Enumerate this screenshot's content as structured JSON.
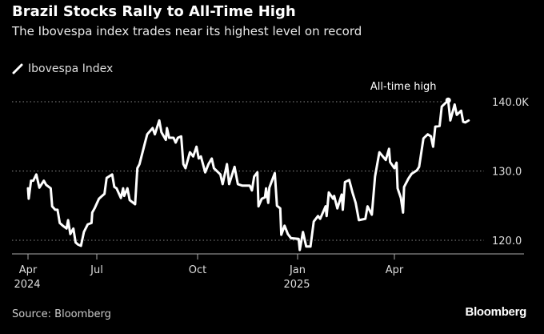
{
  "title": "Brazil Stocks Rally to All-Time High",
  "subtitle": "The Ibovespa index trades near its highest level on record",
  "source": "Source: Bloomberg",
  "logo": "Bloomberg",
  "colors": {
    "background": "#000000",
    "line": "#ffffff",
    "grid": "#888888"
  },
  "chart_data": {
    "type": "line",
    "title": "Brazil Stocks Rally to All-Time High",
    "subtitle": "The Ibovespa index trades near its highest level on record",
    "legend": {
      "entries": [
        "Ibovespa Index"
      ],
      "placement": "top-left"
    },
    "grid": true,
    "y_axis": {
      "side": "right",
      "ylim": [
        117.5,
        141
      ],
      "ticks": [
        120,
        130,
        140
      ],
      "tick_labels": [
        "120.0",
        "130.0",
        "140.0K"
      ]
    },
    "x_axis": {
      "ticks": [
        {
          "date": "2024-04-01",
          "label": "Apr",
          "year": "2024"
        },
        {
          "date": "2024-07-01",
          "label": "Jul",
          "year": ""
        },
        {
          "date": "2024-10-01",
          "label": "Oct",
          "year": ""
        },
        {
          "date": "2025-01-01",
          "label": "Jan",
          "year": "2025"
        },
        {
          "date": "2025-04-01",
          "label": "Apr",
          "year": ""
        }
      ]
    },
    "annotation": {
      "text": "All-time high",
      "date": "2025-05-21",
      "value": 140.2
    },
    "series": [
      {
        "name": "Ibovespa Index",
        "unit": "thousand points",
        "x": [
          "2024-04-01",
          "2024-04-02",
          "2024-04-05",
          "2024-04-08",
          "2024-04-12",
          "2024-04-16",
          "2024-04-22",
          "2024-04-25",
          "2024-05-01",
          "2024-05-03",
          "2024-05-07",
          "2024-05-10",
          "2024-05-13",
          "2024-05-17",
          "2024-05-22",
          "2024-05-24",
          "2024-05-27",
          "2024-05-31",
          "2024-06-03",
          "2024-06-06",
          "2024-06-10",
          "2024-06-14",
          "2024-06-19",
          "2024-06-24",
          "2024-06-25",
          "2024-06-28",
          "2024-07-03",
          "2024-07-08",
          "2024-07-10",
          "2024-07-15",
          "2024-07-17",
          "2024-07-19",
          "2024-07-23",
          "2024-07-25",
          "2024-07-26",
          "2024-07-29",
          "2024-07-31",
          "2024-08-05",
          "2024-08-07",
          "2024-08-09",
          "2024-08-14",
          "2024-08-16",
          "2024-08-21",
          "2024-08-23",
          "2024-08-26",
          "2024-08-27",
          "2024-08-29",
          "2024-09-02",
          "2024-09-03",
          "2024-09-05",
          "2024-09-09",
          "2024-09-11",
          "2024-09-13",
          "2024-09-16",
          "2024-09-18",
          "2024-09-20",
          "2024-09-24",
          "2024-09-27",
          "2024-09-30",
          "2024-10-02",
          "2024-10-04",
          "2024-10-08",
          "2024-10-11",
          "2024-10-14",
          "2024-10-16",
          "2024-10-22",
          "2024-10-24",
          "2024-10-28",
          "2024-10-30",
          "2024-11-04",
          "2024-11-07",
          "2024-11-11",
          "2024-11-18",
          "2024-11-20",
          "2024-11-22",
          "2024-11-25",
          "2024-11-26",
          "2024-11-29",
          "2024-12-02",
          "2024-12-03",
          "2024-12-05",
          "2024-12-06",
          "2024-12-11",
          "2024-12-13",
          "2024-12-16",
          "2024-12-17",
          "2024-12-20",
          "2024-12-23",
          "2024-12-26",
          "2025-01-02",
          "2025-01-03",
          "2025-01-06",
          "2025-01-09",
          "2025-01-13",
          "2025-01-16",
          "2025-01-20",
          "2025-01-22",
          "2025-01-27",
          "2025-01-28",
          "2025-01-30",
          "2025-02-03",
          "2025-02-04",
          "2025-02-07",
          "2025-02-11",
          "2025-02-12",
          "2025-02-14",
          "2025-02-18",
          "2025-02-21",
          "2025-02-24",
          "2025-02-27",
          "2025-03-05",
          "2025-03-07",
          "2025-03-11",
          "2025-03-14",
          "2025-03-18",
          "2025-03-24",
          "2025-03-27",
          "2025-03-28",
          "2025-04-01",
          "2025-04-03",
          "2025-04-04",
          "2025-04-07",
          "2025-04-09",
          "2025-04-10",
          "2025-04-14",
          "2025-04-17",
          "2025-04-22",
          "2025-04-24",
          "2025-04-28",
          "2025-05-02",
          "2025-05-05",
          "2025-05-07",
          "2025-05-09",
          "2025-05-13",
          "2025-05-15",
          "2025-05-19",
          "2025-05-21",
          "2025-05-23",
          "2025-05-27",
          "2025-05-29",
          "2025-06-02",
          "2025-06-04",
          "2025-06-06",
          "2025-06-09"
        ],
        "values": [
          127.5,
          126.0,
          128.6,
          128.6,
          129.5,
          127.6,
          128.6,
          128.0,
          127.5,
          124.9,
          124.4,
          124.4,
          122.5,
          122.1,
          121.7,
          122.9,
          120.9,
          121.7,
          119.7,
          119.4,
          119.2,
          121.2,
          122.3,
          122.5,
          124.0,
          124.6,
          126.0,
          126.7,
          129.0,
          129.5,
          127.7,
          127.5,
          126.1,
          127.5,
          126.4,
          127.5,
          125.8,
          125.2,
          130.4,
          131.0,
          134.1,
          135.3,
          136.2,
          135.3,
          136.8,
          137.3,
          135.6,
          134.5,
          136.2,
          134.8,
          134.8,
          134.1,
          134.8,
          135.0,
          131.0,
          130.4,
          132.7,
          132.1,
          133.5,
          131.8,
          132.1,
          129.8,
          131.0,
          131.8,
          130.4,
          129.5,
          128.1,
          131.0,
          128.1,
          130.6,
          128.1,
          127.9,
          127.9,
          127.2,
          129.2,
          129.8,
          124.9,
          126.0,
          126.2,
          127.5,
          125.4,
          127.6,
          129.7,
          125.0,
          124.6,
          120.8,
          122.1,
          120.9,
          120.3,
          120.2,
          118.6,
          121.2,
          119.1,
          119.1,
          122.7,
          123.5,
          123.1,
          124.9,
          123.5,
          126.9,
          126.0,
          126.4,
          124.6,
          126.6,
          124.4,
          128.4,
          128.7,
          126.9,
          125.4,
          122.9,
          123.1,
          124.9,
          123.7,
          129.2,
          132.7,
          131.6,
          133.2,
          131.3,
          130.4,
          131.2,
          127.5,
          126.1,
          124.0,
          127.7,
          128.9,
          129.6,
          130.1,
          130.6,
          134.7,
          135.3,
          135.0,
          133.5,
          136.4,
          136.5,
          139.3,
          139.9,
          140.2,
          137.3,
          139.6,
          138.1,
          138.7,
          137.1,
          137.0,
          137.3
        ]
      }
    ]
  }
}
